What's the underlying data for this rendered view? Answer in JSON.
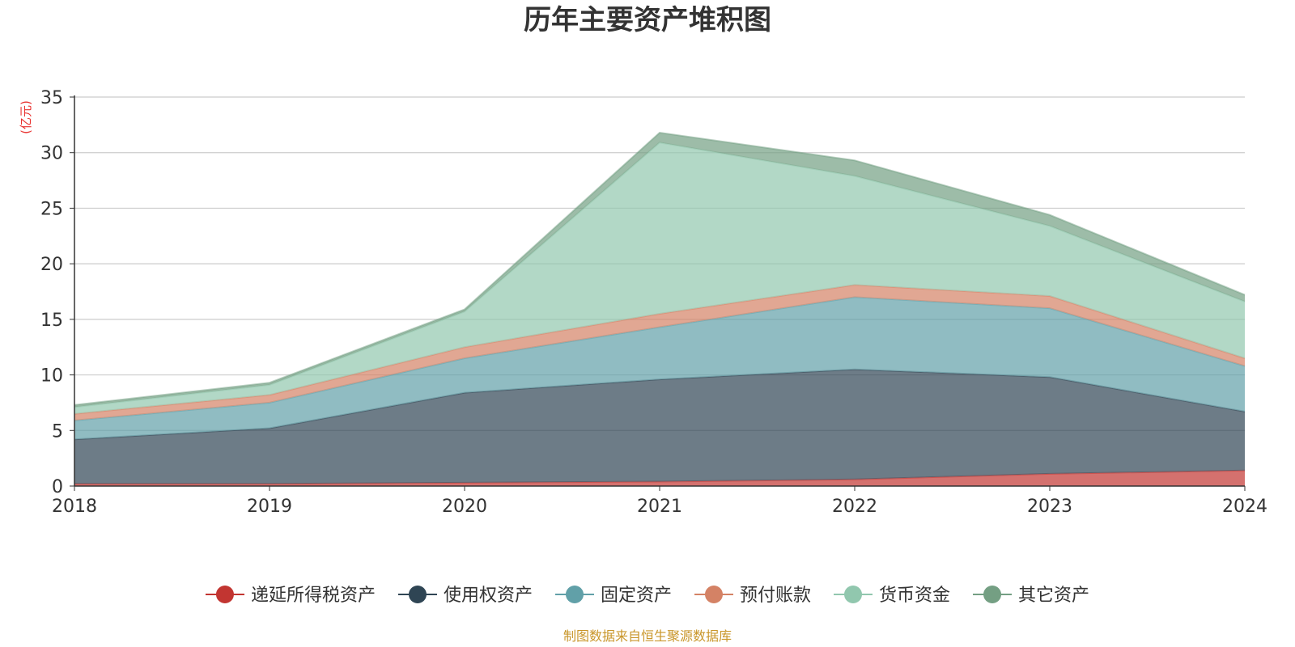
{
  "colors": {
    "axis": "#333333",
    "grid": "#cccccc",
    "title": "#333333",
    "unit": "#e8312f",
    "source": "#c9962a"
  },
  "chart_data": {
    "type": "area",
    "stacked": true,
    "title": "历年主要资产堆积图",
    "unit_label": "(亿元)",
    "source_text": "制图数据来自恒生聚源数据库",
    "categories": [
      "2018",
      "2019",
      "2020",
      "2021",
      "2022",
      "2023",
      "2024"
    ],
    "ylim": [
      0,
      35
    ],
    "yticks": [
      0,
      5,
      10,
      15,
      20,
      25,
      30,
      35
    ],
    "grid": true,
    "legend_position": "bottom",
    "series": [
      {
        "name": "递延所得税资产",
        "color": "#c23531",
        "values": [
          0.2,
          0.2,
          0.3,
          0.4,
          0.6,
          1.1,
          1.4
        ]
      },
      {
        "name": "使用权资产",
        "color": "#2f4554",
        "values": [
          4.0,
          5.0,
          8.1,
          9.2,
          9.9,
          8.7,
          5.3
        ]
      },
      {
        "name": "固定资产",
        "color": "#61a0a8",
        "values": [
          1.7,
          2.3,
          3.1,
          4.7,
          6.5,
          6.2,
          4.1
        ]
      },
      {
        "name": "预付账款",
        "color": "#d48265",
        "values": [
          0.6,
          0.7,
          1.0,
          1.2,
          1.1,
          1.1,
          0.7
        ]
      },
      {
        "name": "货币资金",
        "color": "#91c7ae",
        "values": [
          0.6,
          0.9,
          3.2,
          15.4,
          9.8,
          6.3,
          5.1
        ]
      },
      {
        "name": "其它资产",
        "color": "#749f83",
        "values": [
          0.2,
          0.2,
          0.2,
          0.9,
          1.4,
          1.0,
          0.6
        ]
      }
    ]
  }
}
